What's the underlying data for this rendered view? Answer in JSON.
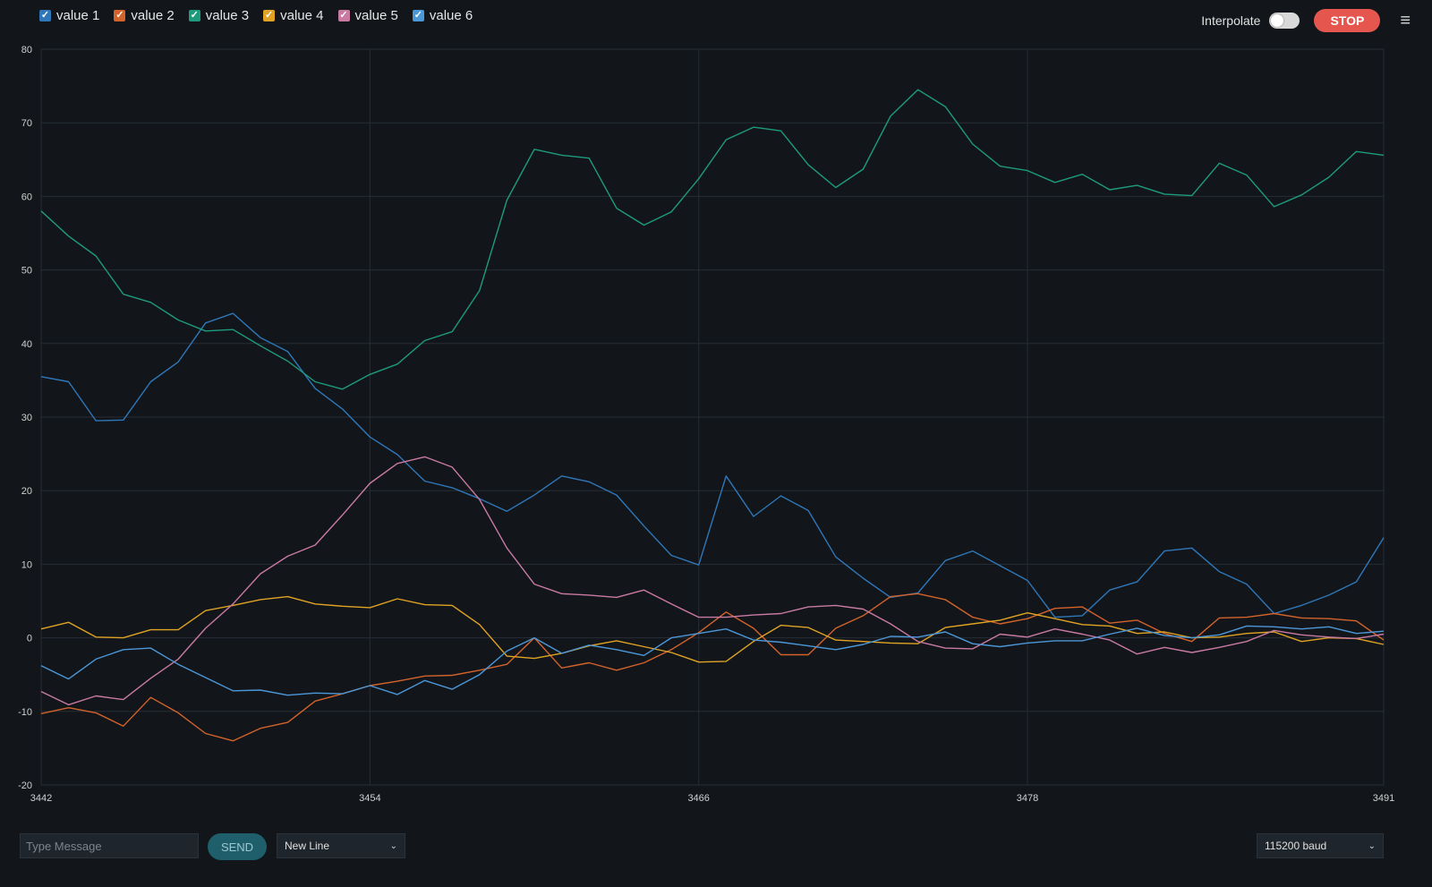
{
  "legend": [
    {
      "label": "value 1",
      "color": "#2f77b8"
    },
    {
      "label": "value 2",
      "color": "#d3632b"
    },
    {
      "label": "value 3",
      "color": "#1e9b7c"
    },
    {
      "label": "value 4",
      "color": "#e0a324"
    },
    {
      "label": "value 5",
      "color": "#c97aa2"
    },
    {
      "label": "value 6",
      "color": "#4c97d8"
    }
  ],
  "controls": {
    "interpolate_label": "Interpolate",
    "interpolate_on": false,
    "stop_label": "STOP"
  },
  "footer": {
    "message_placeholder": "Type Message",
    "send_label": "SEND",
    "line_ending": "New Line",
    "baud": "115200 baud"
  },
  "chart_data": {
    "type": "line",
    "xlim": [
      3442,
      3491
    ],
    "ylim": [
      -20,
      80
    ],
    "x_ticks": [
      3442,
      3454,
      3466,
      3478,
      3491
    ],
    "y_ticks": [
      80,
      70,
      60,
      50,
      40,
      30,
      20,
      10,
      0,
      -10,
      -20
    ],
    "grid": true,
    "x": [
      3442,
      3443,
      3444,
      3445,
      3446,
      3447,
      3448,
      3449,
      3450,
      3451,
      3452,
      3453,
      3454,
      3455,
      3456,
      3457,
      3458,
      3459,
      3460,
      3461,
      3462,
      3463,
      3464,
      3465,
      3466,
      3467,
      3468,
      3469,
      3470,
      3471,
      3472,
      3473,
      3474,
      3475,
      3476,
      3477,
      3478,
      3479,
      3480,
      3481,
      3482,
      3483,
      3484,
      3485,
      3486,
      3487,
      3488,
      3489,
      3490,
      3491
    ],
    "series": [
      {
        "name": "value 1",
        "color": "#2f77b8",
        "values": [
          35.5,
          34.8,
          29.5,
          29.6,
          34.8,
          37.5,
          42.8,
          44.1,
          40.8,
          38.9,
          33.9,
          31.1,
          27.3,
          24.9,
          21.3,
          20.4,
          18.9,
          17.2,
          19.4,
          22.0,
          21.2,
          19.4,
          15.2,
          11.2,
          9.9,
          22.0,
          16.5,
          19.3,
          17.3,
          11.0,
          8.1,
          5.5,
          6.1,
          10.5,
          11.8,
          9.8,
          7.8,
          2.8,
          3.0,
          6.5,
          7.6,
          11.8,
          12.2,
          9.0,
          7.3,
          3.3,
          4.4,
          5.8,
          7.6,
          13.6
        ]
      },
      {
        "name": "value 2",
        "color": "#d3632b",
        "values": [
          -10.3,
          -9.5,
          -10.2,
          -12.0,
          -8.1,
          -10.2,
          -13.0,
          -14.0,
          -12.3,
          -11.5,
          -8.6,
          -7.6,
          -6.5,
          -5.9,
          -5.2,
          -5.1,
          -4.4,
          -3.6,
          0.0,
          -4.1,
          -3.4,
          -4.4,
          -3.4,
          -1.6,
          0.7,
          3.5,
          1.3,
          -2.3,
          -2.3,
          1.3,
          3.0,
          5.6,
          6.0,
          5.2,
          2.8,
          1.9,
          2.6,
          4.0,
          4.2,
          2.0,
          2.4,
          0.6,
          -0.5,
          2.7,
          2.8,
          3.3,
          2.7,
          2.6,
          2.3,
          -0.3
        ]
      },
      {
        "name": "value 3",
        "color": "#1e9b7c",
        "values": [
          58.0,
          54.6,
          51.9,
          46.7,
          45.6,
          43.2,
          41.7,
          41.9,
          39.7,
          37.6,
          34.8,
          33.8,
          35.8,
          37.2,
          40.4,
          41.6,
          47.2,
          59.5,
          66.4,
          65.6,
          65.2,
          58.4,
          56.1,
          57.9,
          62.4,
          67.7,
          69.4,
          68.9,
          64.3,
          61.2,
          63.7,
          70.9,
          74.5,
          72.2,
          67.1,
          64.1,
          63.5,
          61.9,
          63.0,
          60.9,
          61.5,
          60.3,
          60.1,
          64.5,
          62.9,
          58.6,
          60.2,
          62.6,
          66.1,
          65.6
        ]
      },
      {
        "name": "value 4",
        "color": "#e0a324",
        "values": [
          1.2,
          2.1,
          0.1,
          0.0,
          1.1,
          1.1,
          3.7,
          4.4,
          5.2,
          5.6,
          4.6,
          4.3,
          4.1,
          5.3,
          4.5,
          4.4,
          1.8,
          -2.5,
          -2.8,
          -2.1,
          -1.1,
          -0.4,
          -1.2,
          -2.0,
          -3.3,
          -3.2,
          -0.5,
          1.7,
          1.4,
          -0.3,
          -0.5,
          -0.7,
          -0.8,
          1.4,
          1.9,
          2.4,
          3.4,
          2.6,
          1.8,
          1.6,
          0.6,
          0.8,
          0.0,
          0.1,
          0.6,
          0.8,
          -0.5,
          0.0,
          -0.1,
          -0.9
        ]
      },
      {
        "name": "value 5",
        "color": "#c97aa2",
        "values": [
          -7.3,
          -9.1,
          -7.9,
          -8.4,
          -5.5,
          -2.9,
          1.3,
          4.6,
          8.7,
          11.1,
          12.6,
          16.7,
          21.0,
          23.7,
          24.6,
          23.2,
          18.8,
          12.2,
          7.3,
          6.0,
          5.8,
          5.5,
          6.5,
          4.6,
          2.8,
          2.8,
          3.1,
          3.3,
          4.2,
          4.4,
          3.9,
          1.9,
          -0.5,
          -1.4,
          -1.5,
          0.5,
          0.1,
          1.2,
          0.5,
          -0.3,
          -2.2,
          -1.3,
          -2.0,
          -1.3,
          -0.5,
          1.0,
          0.4,
          0.1,
          -0.1,
          0.5
        ]
      },
      {
        "name": "value 6",
        "color": "#4c97d8",
        "values": [
          -3.8,
          -5.6,
          -2.9,
          -1.6,
          -1.4,
          -3.6,
          -5.4,
          -7.2,
          -7.1,
          -7.8,
          -7.5,
          -7.6,
          -6.5,
          -7.7,
          -5.8,
          -7.0,
          -5.0,
          -1.8,
          0.0,
          -2.1,
          -1.0,
          -1.6,
          -2.4,
          0.0,
          0.6,
          1.2,
          -0.3,
          -0.6,
          -1.1,
          -1.6,
          -0.9,
          0.2,
          0.1,
          0.8,
          -0.8,
          -1.2,
          -0.7,
          -0.4,
          -0.4,
          0.5,
          1.3,
          0.3,
          0.0,
          0.4,
          1.6,
          1.5,
          1.2,
          1.5,
          0.6,
          0.9
        ]
      }
    ]
  }
}
